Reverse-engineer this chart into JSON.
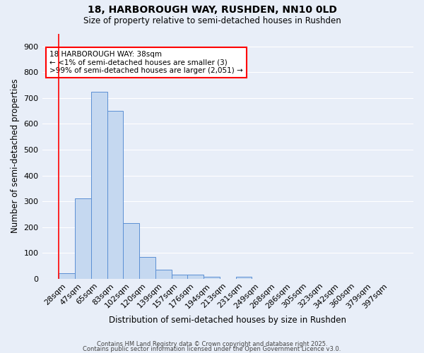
{
  "title_line1": "18, HARBOROUGH WAY, RUSHDEN, NN10 0LD",
  "title_line2": "Size of property relative to semi-detached houses in Rushden",
  "xlabel": "Distribution of semi-detached houses by size in Rushden",
  "ylabel": "Number of semi-detached properties",
  "bar_labels": [
    "28sqm",
    "47sqm",
    "65sqm",
    "83sqm",
    "102sqm",
    "120sqm",
    "139sqm",
    "157sqm",
    "176sqm",
    "194sqm",
    "213sqm",
    "231sqm",
    "249sqm",
    "268sqm",
    "286sqm",
    "305sqm",
    "323sqm",
    "342sqm",
    "360sqm",
    "379sqm",
    "397sqm"
  ],
  "bar_values": [
    22,
    310,
    725,
    650,
    215,
    85,
    35,
    15,
    15,
    8,
    0,
    8,
    0,
    0,
    0,
    0,
    0,
    0,
    0,
    0,
    0
  ],
  "bar_color": "#c5d8f0",
  "bar_edge_color": "#5b8fd4",
  "bg_color": "#e8eef8",
  "grid_color": "#ffffff",
  "annotation_text": "18 HARBOROUGH WAY: 38sqm\n← <1% of semi-detached houses are smaller (3)\n>99% of semi-detached houses are larger (2,051) →",
  "ylim": [
    0,
    950
  ],
  "yticks": [
    0,
    100,
    200,
    300,
    400,
    500,
    600,
    700,
    800,
    900
  ],
  "footer_line1": "Contains HM Land Registry data © Crown copyright and database right 2025.",
  "footer_line2": "Contains public sector information licensed under the Open Government Licence v3.0."
}
